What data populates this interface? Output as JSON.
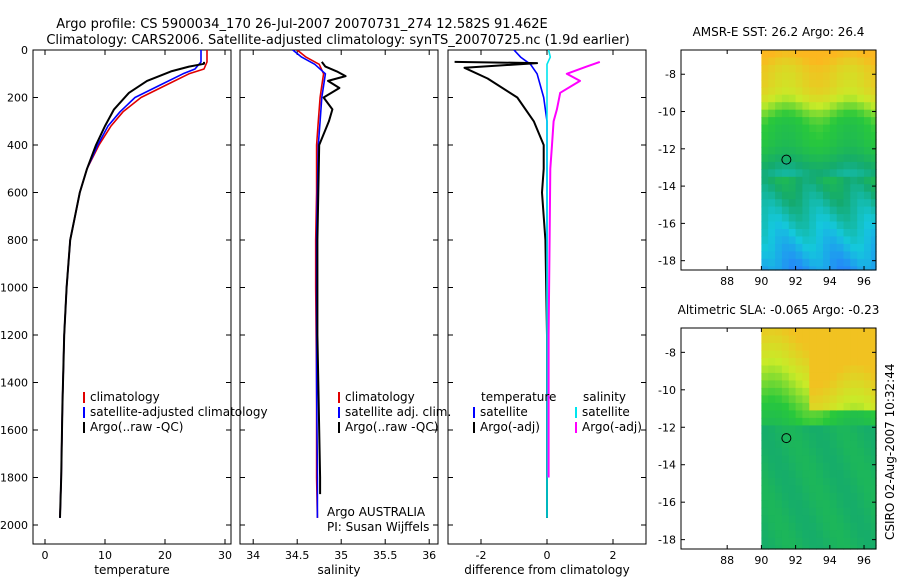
{
  "header": {
    "line1": "Argo profile: CS 5900034_170 26-Jul-2007 20070731_274 12.582S 91.462E",
    "line2": "Climatology: CARS2006. Satellite-adjusted climatology: synTS_20070725.nc (1.9d earlier)"
  },
  "side_label": "CSIRO 02-Aug-2007 10:32:44",
  "colors": {
    "climatology": "#e00000",
    "satellite": "#0000ff",
    "argo": "#000000",
    "sal_sat": "#00e5ee",
    "sal_argo": "#ff00ff"
  },
  "chart_data": [
    {
      "type": "line",
      "name": "temperature-profile",
      "xlabel": "temperature",
      "xlim": [
        -2,
        31
      ],
      "ylim": [
        0,
        2080
      ],
      "xticks": [
        "0",
        "10",
        "20",
        "30"
      ],
      "xtick_values": [
        0,
        10,
        20,
        30
      ],
      "yticks": [
        "0",
        "200",
        "400",
        "600",
        "800",
        "1000",
        "1200",
        "1400",
        "1600",
        "1800",
        "2000"
      ],
      "ytick_values": [
        0,
        200,
        400,
        600,
        800,
        1000,
        1200,
        1400,
        1600,
        1800,
        2000
      ],
      "legend": [
        "climatology",
        "satellite-adjusted climatology",
        "Argo(..raw -QC)"
      ],
      "series": [
        {
          "name": "climatology",
          "color": "#e00000",
          "x": [
            27,
            27,
            26.5,
            24,
            20,
            16,
            13,
            11,
            9,
            7,
            5.8,
            5,
            4.2,
            3.6,
            3.2,
            2.9,
            2.7,
            2.5
          ],
          "y": [
            0,
            50,
            80,
            100,
            150,
            200,
            260,
            320,
            400,
            500,
            600,
            700,
            800,
            1000,
            1200,
            1500,
            1800,
            1970
          ]
        },
        {
          "name": "satellite-adjusted climatology",
          "color": "#0000ff",
          "x": [
            26,
            26,
            25,
            23,
            19,
            15,
            12.5,
            10.5,
            8.8,
            7,
            5.8,
            5,
            4.2,
            3.6,
            3.2,
            2.9,
            2.7,
            2.5
          ],
          "y": [
            0,
            50,
            80,
            100,
            150,
            200,
            260,
            320,
            400,
            500,
            600,
            700,
            800,
            1000,
            1200,
            1500,
            1800,
            1970
          ]
        },
        {
          "name": "Argo(..raw -QC)",
          "color": "#000000",
          "x": [
            26.5,
            26.5,
            24,
            21,
            17,
            14,
            11.5,
            10,
            8.5,
            7,
            5.8,
            5,
            4.2,
            3.6,
            3.2,
            2.9,
            2.7,
            2.5
          ],
          "y": [
            50,
            58,
            70,
            90,
            130,
            180,
            250,
            320,
            400,
            500,
            600,
            700,
            800,
            1000,
            1200,
            1500,
            1800,
            1970
          ]
        }
      ]
    },
    {
      "type": "line",
      "name": "salinity-profile",
      "xlabel": "salinity",
      "xlim": [
        33.85,
        36.1
      ],
      "ylim": [
        0,
        2080
      ],
      "xticks": [
        "34",
        "34.5",
        "35",
        "35.5",
        "36"
      ],
      "xtick_values": [
        34,
        34.5,
        35,
        35.5,
        36
      ],
      "legend": [
        "climatology",
        "satellite adj. clim.",
        "Argo(..raw -QC)"
      ],
      "annotations": [
        "Argo AUSTRALIA",
        "PI: Susan Wijffels"
      ],
      "series": [
        {
          "name": "climatology",
          "color": "#e00000",
          "x": [
            34.5,
            34.6,
            34.75,
            34.8,
            34.78,
            34.76,
            34.74,
            34.72,
            34.72,
            34.71,
            34.71,
            34.72,
            34.72,
            34.73
          ],
          "y": [
            0,
            30,
            60,
            100,
            150,
            200,
            300,
            400,
            600,
            800,
            1000,
            1400,
            1800,
            1970
          ]
        },
        {
          "name": "satellite adj. clim.",
          "color": "#0000ff",
          "x": [
            34.45,
            34.55,
            34.7,
            34.82,
            34.8,
            34.78,
            34.76,
            34.74,
            34.73,
            34.72,
            34.72,
            34.72,
            34.73,
            34.73
          ],
          "y": [
            0,
            30,
            60,
            100,
            150,
            200,
            300,
            400,
            600,
            800,
            1000,
            1400,
            1800,
            1970
          ]
        },
        {
          "name": "Argo(..raw -QC)",
          "color": "#000000",
          "x": [
            34.78,
            34.82,
            34.95,
            35.05,
            34.85,
            34.98,
            34.8,
            34.9,
            34.86,
            34.75,
            34.74,
            34.73,
            34.73,
            34.75,
            34.76,
            34.76
          ],
          "y": [
            50,
            70,
            90,
            110,
            130,
            160,
            200,
            250,
            300,
            400,
            600,
            800,
            1200,
            1600,
            1800,
            1870
          ]
        }
      ]
    },
    {
      "type": "line",
      "name": "difference-profile",
      "xlabel": "difference from climatology",
      "xlim": [
        -3,
        3
      ],
      "ylim": [
        0,
        2080
      ],
      "xticks": [
        "-2",
        "0",
        "2"
      ],
      "xtick_values": [
        -2,
        0,
        2
      ],
      "legend_left_title": "temperature",
      "legend_left": [
        "satellite",
        "Argo(-adj)"
      ],
      "legend_right_title": "salinity",
      "legend_right": [
        "satellite",
        "Argo(-adj)"
      ],
      "series": [
        {
          "name": "temperature satellite",
          "color": "#0000ff",
          "x": [
            -1,
            -0.8,
            -0.5,
            -0.3,
            -0.1,
            0,
            0,
            0,
            0
          ],
          "y": [
            0,
            30,
            60,
            100,
            200,
            300,
            600,
            1200,
            1970
          ]
        },
        {
          "name": "temperature Argo(-adj)",
          "color": "#000000",
          "x": [
            -2.8,
            -0.3,
            -2.5,
            -1.8,
            -0.9,
            -0.4,
            -0.1,
            -0.1,
            -0.15,
            -0.1,
            -0.05,
            0,
            0
          ],
          "y": [
            50,
            55,
            75,
            120,
            200,
            300,
            400,
            500,
            600,
            700,
            800,
            1200,
            1970
          ]
        },
        {
          "name": "salinity satellite",
          "color": "#00e5ee",
          "x": [
            0.05,
            0.1,
            0,
            0,
            0,
            0,
            0,
            0,
            0
          ],
          "y": [
            0,
            30,
            60,
            100,
            200,
            400,
            800,
            1400,
            1970
          ]
        },
        {
          "name": "salinity Argo(-adj)",
          "color": "#ff00ff",
          "x": [
            1.6,
            1.2,
            0.6,
            1.0,
            0.4,
            0.3,
            0.2,
            0.15,
            0.1,
            0.08,
            0.05,
            0.05,
            0.05
          ],
          "y": [
            50,
            70,
            100,
            130,
            180,
            250,
            300,
            400,
            500,
            800,
            1200,
            1600,
            1800
          ]
        }
      ]
    },
    {
      "type": "heatmap",
      "name": "sst-map",
      "title": "AMSR-E SST: 26.2  Argo: 26.4",
      "xlim": [
        85.3,
        96.7
      ],
      "ylim": [
        -18.5,
        -6.7
      ],
      "xticks": [
        "88",
        "90",
        "92",
        "94",
        "96"
      ],
      "xtick_values": [
        88,
        90,
        92,
        94,
        96
      ],
      "yticks": [
        "-8",
        "-10",
        "-12",
        "-14",
        "-16",
        "-18"
      ],
      "ytick_values": [
        -8,
        -10,
        -12,
        -14,
        -16,
        -18
      ],
      "data_lon_min": 90,
      "marker": {
        "lon": 91.46,
        "lat": -12.58
      }
    },
    {
      "type": "heatmap",
      "name": "sla-map",
      "title": "Altimetric SLA: -0.065  Argo: -0.23",
      "xlim": [
        85.3,
        96.7
      ],
      "ylim": [
        -18.5,
        -6.7
      ],
      "xticks": [
        "88",
        "90",
        "92",
        "94",
        "96"
      ],
      "xtick_values": [
        88,
        90,
        92,
        94,
        96
      ],
      "yticks": [
        "-8",
        "-10",
        "-12",
        "-14",
        "-16",
        "-18"
      ],
      "ytick_values": [
        -8,
        -10,
        -12,
        -14,
        -16,
        -18
      ],
      "data_lon_min": 90,
      "marker": {
        "lon": 91.46,
        "lat": -12.58
      }
    }
  ]
}
